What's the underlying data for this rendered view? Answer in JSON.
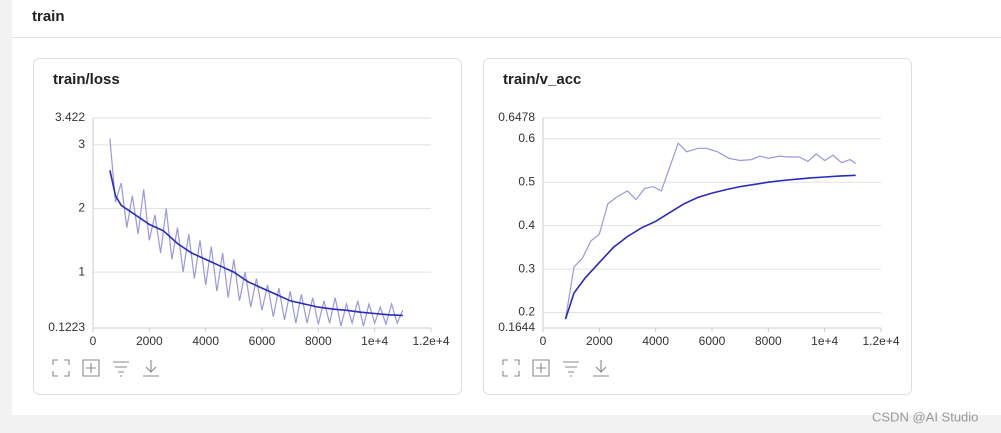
{
  "header": {
    "title": "train"
  },
  "watermark": "CSDN @AI Studio",
  "chart_data": [
    {
      "type": "line",
      "title": "train/loss",
      "xlim": [
        0,
        12000
      ],
      "xticks": [
        0,
        2000,
        4000,
        6000,
        8000,
        {
          "value": 10000,
          "label": "1e+4"
        },
        {
          "value": 12000,
          "label": "1.2e+4"
        }
      ],
      "ylim": [
        0.1223,
        3.422
      ],
      "yticks": [
        0.1223,
        1,
        2,
        3,
        3.422
      ],
      "grid": true,
      "series": [
        {
          "color": "#9898e4",
          "x": [
            600,
            800,
            1000,
            1200,
            1400,
            1600,
            1800,
            2000,
            2200,
            2400,
            2600,
            2800,
            3000,
            3200,
            3400,
            3600,
            3800,
            4000,
            4200,
            4400,
            4600,
            4800,
            5000,
            5200,
            5400,
            5600,
            5800,
            6000,
            6200,
            6400,
            6600,
            6800,
            7000,
            7200,
            7400,
            7600,
            7800,
            8000,
            8200,
            8400,
            8600,
            8800,
            9000,
            9200,
            9400,
            9600,
            9800,
            10000,
            10200,
            10400,
            10600,
            10800,
            11000
          ],
          "values": [
            3.1,
            2.1,
            2.4,
            1.7,
            2.2,
            1.6,
            2.3,
            1.5,
            1.9,
            1.3,
            2.0,
            1.2,
            1.7,
            1.0,
            1.6,
            0.9,
            1.5,
            0.8,
            1.4,
            0.7,
            1.3,
            0.6,
            1.2,
            0.55,
            1.0,
            0.45,
            0.9,
            0.4,
            0.8,
            0.3,
            0.75,
            0.25,
            0.7,
            0.2,
            0.65,
            0.2,
            0.6,
            0.18,
            0.55,
            0.2,
            0.6,
            0.15,
            0.5,
            0.2,
            0.55,
            0.15,
            0.5,
            0.2,
            0.45,
            0.18,
            0.5,
            0.2,
            0.4
          ]
        },
        {
          "color": "#2a2ac0",
          "x": [
            600,
            800,
            1000,
            1500,
            2000,
            2500,
            3000,
            3500,
            4000,
            4500,
            5000,
            5500,
            6000,
            6500,
            7000,
            7500,
            8000,
            8500,
            9000,
            9500,
            10000,
            10500,
            11000
          ],
          "values": [
            2.6,
            2.2,
            2.05,
            1.9,
            1.75,
            1.65,
            1.45,
            1.3,
            1.2,
            1.1,
            1.0,
            0.85,
            0.75,
            0.65,
            0.55,
            0.5,
            0.45,
            0.42,
            0.4,
            0.37,
            0.35,
            0.33,
            0.32
          ]
        }
      ]
    },
    {
      "type": "line",
      "title": "train/v_acc",
      "xlim": [
        0,
        12000
      ],
      "xticks": [
        0,
        2000,
        4000,
        6000,
        8000,
        {
          "value": 10000,
          "label": "1e+4"
        },
        {
          "value": 12000,
          "label": "1.2e+4"
        }
      ],
      "ylim": [
        0.1644,
        0.6478
      ],
      "yticks": [
        0.1644,
        0.2,
        0.3,
        0.4,
        0.5,
        0.6,
        0.6478
      ],
      "grid": true,
      "series": [
        {
          "color": "#9898e4",
          "x": [
            800,
            1100,
            1400,
            1700,
            2000,
            2300,
            2600,
            3000,
            3300,
            3600,
            3900,
            4200,
            4500,
            4800,
            5100,
            5500,
            5800,
            6200,
            6600,
            7000,
            7400,
            7700,
            8000,
            8400,
            8700,
            9100,
            9400,
            9700,
            10000,
            10300,
            10600,
            10900,
            11100
          ],
          "values": [
            0.185,
            0.305,
            0.325,
            0.365,
            0.38,
            0.45,
            0.465,
            0.48,
            0.46,
            0.485,
            0.49,
            0.48,
            0.535,
            0.59,
            0.57,
            0.578,
            0.578,
            0.57,
            0.555,
            0.55,
            0.552,
            0.56,
            0.555,
            0.56,
            0.558,
            0.558,
            0.548,
            0.565,
            0.55,
            0.562,
            0.545,
            0.552,
            0.543
          ]
        },
        {
          "color": "#2a2ac0",
          "x": [
            800,
            1100,
            1500,
            2000,
            2500,
            3000,
            3500,
            4000,
            4500,
            5000,
            5500,
            6000,
            6500,
            7000,
            7500,
            8000,
            8500,
            9000,
            9500,
            10000,
            10500,
            11100
          ],
          "values": [
            0.185,
            0.245,
            0.28,
            0.315,
            0.35,
            0.375,
            0.395,
            0.41,
            0.43,
            0.45,
            0.465,
            0.475,
            0.483,
            0.49,
            0.495,
            0.5,
            0.504,
            0.507,
            0.51,
            0.512,
            0.514,
            0.516
          ]
        }
      ]
    }
  ]
}
